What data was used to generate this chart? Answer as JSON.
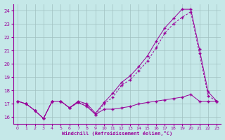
{
  "xlabel": "Windchill (Refroidissement éolien,°C)",
  "background_color": "#c5e8e8",
  "grid_color": "#a0c0c0",
  "line_color": "#990099",
  "xlim": [
    -0.5,
    23.5
  ],
  "ylim": [
    15.5,
    24.5
  ],
  "yticks": [
    16,
    17,
    18,
    19,
    20,
    21,
    22,
    23,
    24
  ],
  "xticks": [
    0,
    1,
    2,
    3,
    4,
    5,
    6,
    7,
    8,
    9,
    10,
    11,
    12,
    13,
    14,
    15,
    16,
    17,
    18,
    19,
    20,
    21,
    22,
    23
  ],
  "line1_x": [
    0,
    1,
    2,
    3,
    4,
    5,
    6,
    7,
    8,
    9,
    10,
    11,
    12,
    13,
    14,
    15,
    16,
    17,
    18,
    19,
    20,
    21,
    22,
    23
  ],
  "line1_y": [
    17.2,
    17.0,
    16.5,
    15.9,
    17.2,
    17.2,
    16.7,
    17.1,
    16.8,
    16.2,
    16.6,
    16.6,
    16.7,
    16.8,
    17.0,
    17.1,
    17.2,
    17.3,
    17.4,
    17.5,
    17.7,
    17.2,
    17.2,
    17.2
  ],
  "line2_x": [
    0,
    1,
    2,
    3,
    4,
    5,
    6,
    7,
    8,
    9,
    10,
    11,
    12,
    13,
    14,
    15,
    16,
    17,
    18,
    19,
    20,
    21,
    22,
    23
  ],
  "line2_y": [
    17.2,
    17.0,
    16.5,
    15.9,
    17.2,
    17.2,
    16.7,
    17.1,
    16.9,
    16.2,
    17.0,
    17.5,
    18.4,
    18.8,
    19.5,
    20.2,
    21.2,
    22.3,
    23.0,
    23.5,
    23.9,
    20.8,
    17.6,
    17.2
  ],
  "line3_x": [
    0,
    1,
    2,
    3,
    4,
    5,
    6,
    7,
    8,
    9,
    10,
    11,
    12,
    13,
    14,
    15,
    16,
    17,
    18,
    19,
    20,
    21,
    22,
    23
  ],
  "line3_y": [
    17.2,
    17.0,
    16.5,
    15.9,
    17.2,
    17.2,
    16.7,
    17.2,
    17.0,
    16.3,
    17.1,
    17.8,
    18.6,
    19.1,
    19.8,
    20.6,
    21.7,
    22.7,
    23.4,
    24.1,
    24.1,
    21.1,
    17.9,
    17.2
  ]
}
